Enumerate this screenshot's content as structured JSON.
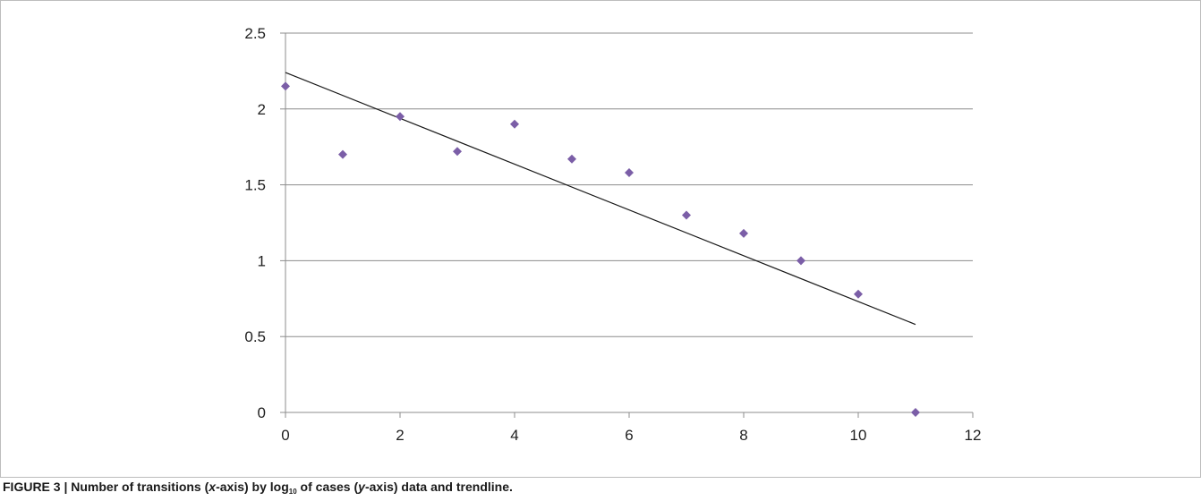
{
  "chart_data": {
    "type": "scatter",
    "title": "",
    "xlabel": "",
    "ylabel": "",
    "xlim": [
      0,
      12
    ],
    "ylim": [
      0,
      2.5
    ],
    "x_ticks": [
      "0",
      "2",
      "4",
      "6",
      "8",
      "10",
      "12"
    ],
    "y_ticks": [
      "0",
      "0.5",
      "1",
      "1.5",
      "2",
      "2.5"
    ],
    "grid": "horizontal",
    "legend": "none",
    "series": [
      {
        "marker": "diamond",
        "color": "#7b5ea7",
        "points": [
          {
            "x": 0,
            "y": 2.15
          },
          {
            "x": 1,
            "y": 1.7
          },
          {
            "x": 2,
            "y": 1.95
          },
          {
            "x": 3,
            "y": 1.72
          },
          {
            "x": 4,
            "y": 1.9
          },
          {
            "x": 5,
            "y": 1.67
          },
          {
            "x": 6,
            "y": 1.58
          },
          {
            "x": 7,
            "y": 1.3
          },
          {
            "x": 8,
            "y": 1.18
          },
          {
            "x": 9,
            "y": 1.0
          },
          {
            "x": 10,
            "y": 0.78
          },
          {
            "x": 11,
            "y": 0.0
          }
        ]
      }
    ],
    "trendline": {
      "color": "#1a1a1a",
      "start": {
        "x": 0,
        "y": 2.24
      },
      "end": {
        "x": 11,
        "y": 0.58
      }
    }
  },
  "caption": {
    "prefix": "FIGURE 3 | Number of transitions (",
    "x_axis_word": "x",
    "middle": "-axis) by log",
    "log_subscript": "10",
    "after_log": " of cases (",
    "y_axis_word": "y",
    "suffix": "-axis) data and trendline."
  }
}
